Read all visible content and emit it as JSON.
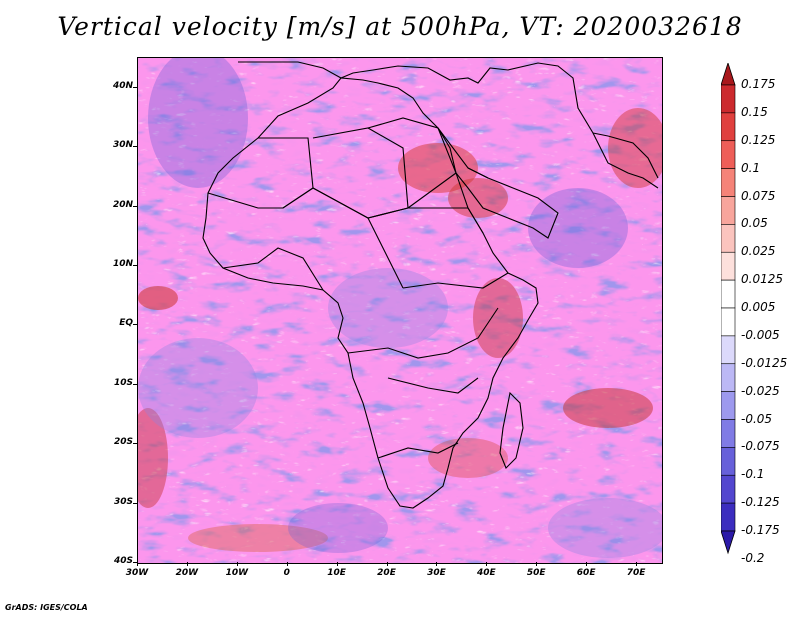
{
  "title": "Vertical velocity [m/s] at 500hPa, VT: 2020032618",
  "footer": "GrADS: IGES/COLA",
  "map": {
    "lat_labels": [
      "40N",
      "30N",
      "20N",
      "10N",
      "EQ",
      "10S",
      "20S",
      "30S",
      "40S"
    ],
    "lon_labels": [
      "30W",
      "20W",
      "10W",
      "0",
      "10E",
      "20E",
      "30E",
      "40E",
      "50E",
      "60E",
      "70E"
    ],
    "lon_range": [
      -30,
      75
    ],
    "lat_range": [
      -40,
      45
    ],
    "colors": {
      "strong_up": "#c0282f",
      "up": "#f2a39c",
      "neutral": "#ffffff",
      "down": "#a9a6ee",
      "strong_down": "#4a3fc8",
      "borders": "#000000"
    }
  },
  "colorbar": {
    "levels": [
      "0.175",
      "0.15",
      "0.125",
      "0.1",
      "0.075",
      "0.05",
      "0.025",
      "0.0125",
      "0.005",
      "-0.005",
      "-0.0125",
      "-0.025",
      "-0.05",
      "-0.075",
      "-0.1",
      "-0.125",
      "-0.175",
      "-0.2"
    ],
    "colors": [
      "#a8181c",
      "#cc2a2e",
      "#e0403e",
      "#ee5e58",
      "#f58378",
      "#f8a59c",
      "#fbc4be",
      "#fde0dc",
      "#ffffff",
      "#ffffff",
      "#dcd9fb",
      "#bcb8f5",
      "#9d99ee",
      "#807be5",
      "#6760da",
      "#5346cf",
      "#3c2dbf",
      "#2c1aa8"
    ]
  }
}
